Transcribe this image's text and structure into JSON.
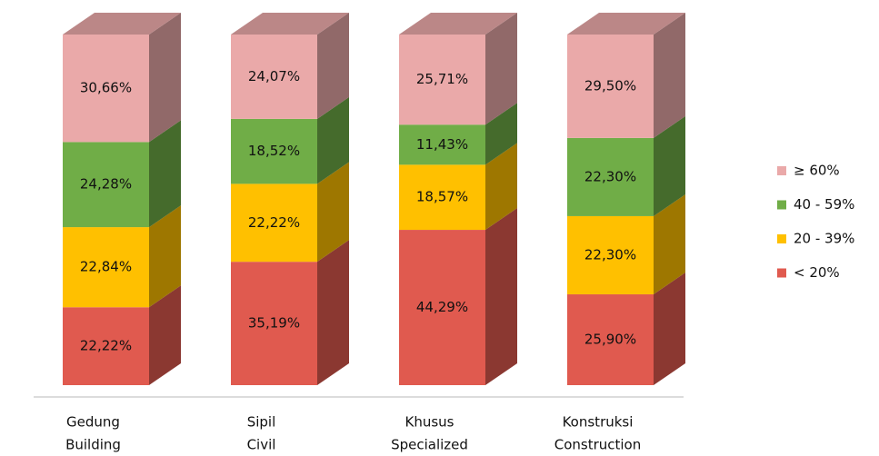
{
  "chart_data": {
    "type": "stacked-bar-3d",
    "categories": [
      [
        "Gedung",
        "Building"
      ],
      [
        "Sipil",
        "Civil"
      ],
      [
        "Khusus",
        "Specialized"
      ],
      [
        "Konstruksi",
        "Construction"
      ]
    ],
    "series": [
      {
        "name": "< 20%",
        "color": "#e05a4f",
        "values": [
          22.22,
          35.19,
          44.29,
          25.9
        ],
        "value_labels": [
          "22,22%",
          "35,19%",
          "44,29%",
          "25,90%"
        ]
      },
      {
        "name": "20 - 39%",
        "color": "#ffc000",
        "values": [
          22.84,
          22.22,
          18.57,
          22.3
        ],
        "value_labels": [
          "22,84%",
          "22,22%",
          "18,57%",
          "22,30%"
        ]
      },
      {
        "name": "40 - 59%",
        "color": "#70ad47",
        "values": [
          24.28,
          18.52,
          11.43,
          22.3
        ],
        "value_labels": [
          "24,28%",
          "18,52%",
          "11,43%",
          "22,30%"
        ]
      },
      {
        "name": "≥ 60%",
        "color": "#eaa9a9",
        "values": [
          30.66,
          24.07,
          25.71,
          29.5
        ],
        "value_labels": [
          "30,66%",
          "24,07%",
          "25,71%",
          "29,50%"
        ]
      }
    ],
    "legend": "right"
  }
}
